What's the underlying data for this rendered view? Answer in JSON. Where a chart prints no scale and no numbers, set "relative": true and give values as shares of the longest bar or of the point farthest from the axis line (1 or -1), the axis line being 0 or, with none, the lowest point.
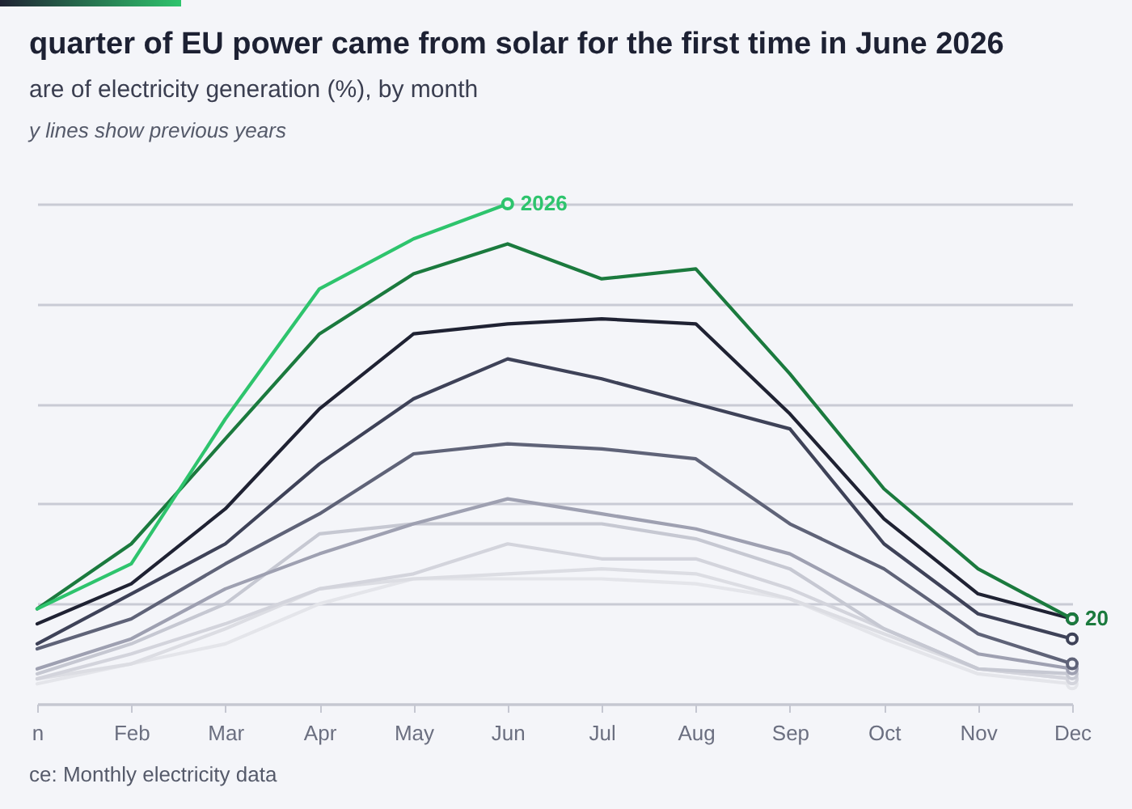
{
  "chart_data": {
    "type": "line",
    "title": "quarter of EU power came from solar for the first time in June 2026",
    "subtitle": "are of electricity generation (%), by month",
    "annotations": [
      "y lines show previous years",
      "ce: Monthly electricity data"
    ],
    "categories": [
      "n",
      "Feb",
      "Mar",
      "Apr",
      "May",
      "Jun",
      "Jul",
      "Aug",
      "Sep",
      "Oct",
      "Nov",
      "Dec"
    ],
    "relative": true,
    "grid": "y",
    "series": [
      {
        "color": "#e4e5ea",
        "values": [
          0.04,
          0.08,
          0.12,
          0.2,
          0.25,
          0.25,
          0.25,
          0.24,
          0.21,
          0.13,
          0.06,
          0.04
        ]
      },
      {
        "color": "#dcdde3",
        "values": [
          0.05,
          0.08,
          0.15,
          0.23,
          0.25,
          0.26,
          0.27,
          0.26,
          0.21,
          0.14,
          0.07,
          0.05
        ]
      },
      {
        "color": "#d3d4dc",
        "values": [
          0.05,
          0.1,
          0.16,
          0.23,
          0.26,
          0.32,
          0.29,
          0.29,
          0.23,
          0.15,
          0.07,
          0.05
        ]
      },
      {
        "color": "#c6c8d2",
        "values": [
          0.06,
          0.12,
          0.2,
          0.34,
          0.36,
          0.36,
          0.36,
          0.33,
          0.27,
          0.15,
          0.07,
          0.06
        ]
      },
      {
        "color": "#9ea0b1",
        "values": [
          0.07,
          0.13,
          0.23,
          0.3,
          0.36,
          0.41,
          0.38,
          0.35,
          0.3,
          0.2,
          0.1,
          0.07
        ]
      },
      {
        "color": "#5f6378",
        "values": [
          0.11,
          0.17,
          0.28,
          0.38,
          0.5,
          0.52,
          0.51,
          0.49,
          0.36,
          0.27,
          0.14,
          0.08
        ]
      },
      {
        "color": "#3e4258",
        "values": [
          0.12,
          0.22,
          0.32,
          0.48,
          0.61,
          0.69,
          0.65,
          0.6,
          0.55,
          0.32,
          0.18,
          0.13
        ]
      },
      {
        "color": "#1f2233",
        "values": [
          0.16,
          0.24,
          0.39,
          0.59,
          0.74,
          0.76,
          0.77,
          0.76,
          0.58,
          0.37,
          0.22,
          0.17
        ]
      },
      {
        "name": "20",
        "color": "#1b7a3e",
        "values": [
          0.19,
          0.32,
          0.53,
          0.74,
          0.86,
          0.92,
          0.85,
          0.87,
          0.66,
          0.43,
          0.27,
          0.17
        ]
      },
      {
        "name": "2026",
        "color": "#2ec46d",
        "values": [
          0.19,
          0.28,
          0.57,
          0.83,
          0.93,
          1,
          null,
          null,
          null,
          null,
          null,
          null
        ]
      }
    ]
  }
}
